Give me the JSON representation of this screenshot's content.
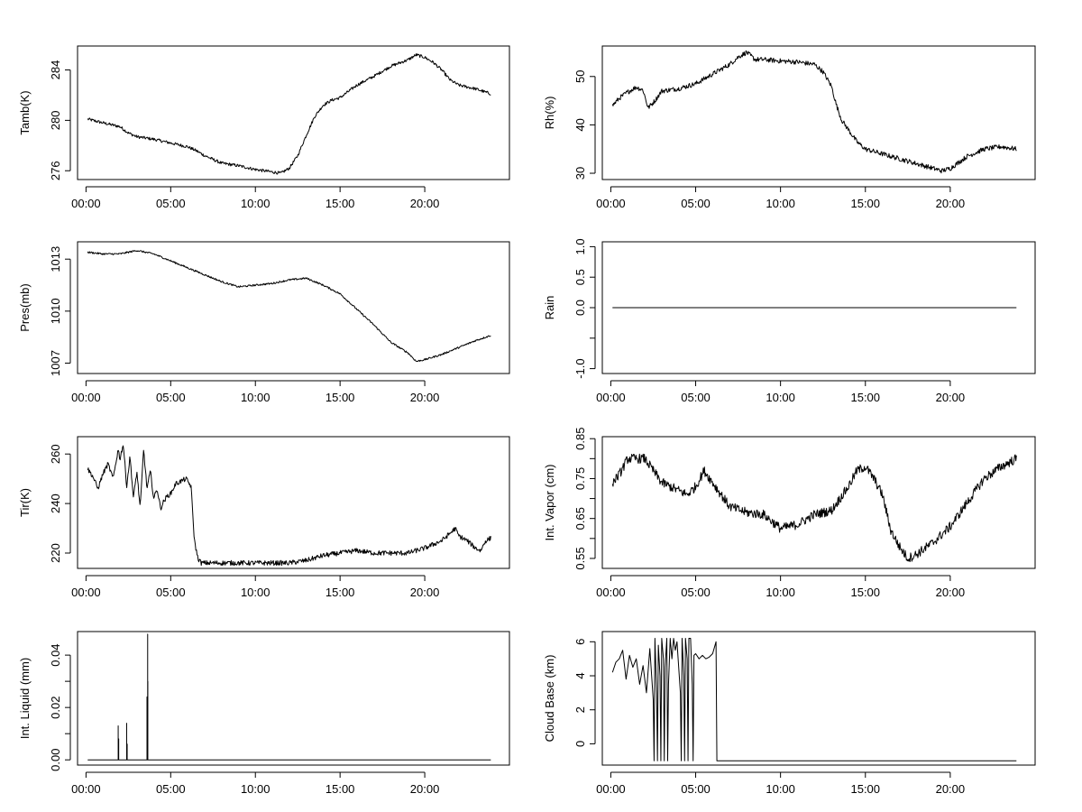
{
  "chart_data": [
    {
      "type": "line",
      "ylabel": "Tamb(K)",
      "x_ticks": [
        "00:00",
        "05:00",
        "10:00",
        "15:00",
        "20:00"
      ],
      "xlim": [
        -0.5,
        25.0
      ],
      "ylim": [
        275.3,
        285.9
      ],
      "y_ticks": [
        276,
        280,
        284
      ],
      "noise": 0.12,
      "series": [
        {
          "x": [
            0.1,
            1.0,
            2.0,
            2.5,
            3.0,
            4.0,
            5.0,
            6.0,
            6.5,
            7.0,
            7.5,
            8.0,
            9.0,
            10.0,
            11.0,
            11.5,
            12.0,
            12.5,
            13.0,
            13.5,
            14.0,
            14.5,
            15.0,
            16.0,
            17.0,
            18.0,
            19.0,
            19.5,
            20.0,
            20.5,
            21.0,
            21.5,
            22.0,
            23.0,
            23.9
          ],
          "y": [
            280.1,
            279.8,
            279.5,
            279.0,
            278.7,
            278.5,
            278.2,
            277.9,
            277.6,
            277.2,
            276.9,
            276.6,
            276.4,
            276.1,
            275.9,
            275.8,
            276.2,
            277.2,
            278.8,
            280.3,
            281.2,
            281.6,
            281.8,
            282.8,
            283.5,
            284.3,
            284.8,
            285.2,
            285.0,
            284.6,
            284.0,
            283.2,
            282.8,
            282.5,
            282.1
          ]
        }
      ]
    },
    {
      "type": "line",
      "ylabel": "Rh(%)",
      "x_ticks": [
        "00:00",
        "05:00",
        "10:00",
        "15:00",
        "20:00"
      ],
      "xlim": [
        -0.5,
        25.0
      ],
      "ylim": [
        28.7,
        56.3
      ],
      "y_ticks": [
        30,
        40,
        50
      ],
      "noise": 0.5,
      "series": [
        {
          "x": [
            0.1,
            0.5,
            1.0,
            1.5,
            1.9,
            2.2,
            2.6,
            3.0,
            4.0,
            5.0,
            6.0,
            7.0,
            7.5,
            8.0,
            8.5,
            9.0,
            10.0,
            11.0,
            12.0,
            12.5,
            13.0,
            13.3,
            13.6,
            14.0,
            14.5,
            15.0,
            16.0,
            17.0,
            18.0,
            19.0,
            19.5,
            20.0,
            21.0,
            22.0,
            23.0,
            23.9
          ],
          "y": [
            44.0,
            45.5,
            46.8,
            47.8,
            47.2,
            43.5,
            45.0,
            47.0,
            47.5,
            48.5,
            50.5,
            52.5,
            54.0,
            55.0,
            53.5,
            53.5,
            53.2,
            53.0,
            52.5,
            51.0,
            48.0,
            44.0,
            41.0,
            39.0,
            36.5,
            35.0,
            34.0,
            33.0,
            32.0,
            31.0,
            30.5,
            31.0,
            33.5,
            35.0,
            35.5,
            35.0
          ]
        }
      ]
    },
    {
      "type": "line",
      "ylabel": "Pres(mb)",
      "x_ticks": [
        "00:00",
        "05:00",
        "10:00",
        "15:00",
        "20:00"
      ],
      "xlim": [
        -0.5,
        25.0
      ],
      "ylim": [
        1006.4,
        1014.0
      ],
      "y_ticks": [
        1007,
        1010,
        1013
      ],
      "noise": 0.05,
      "series": [
        {
          "x": [
            0.1,
            1.0,
            2.0,
            3.0,
            4.0,
            5.0,
            6.0,
            7.0,
            8.0,
            9.0,
            10.0,
            11.0,
            12.0,
            13.0,
            14.0,
            15.0,
            16.0,
            17.0,
            18.0,
            19.0,
            19.5,
            20.0,
            21.0,
            22.0,
            23.0,
            23.9
          ],
          "y": [
            1013.4,
            1013.3,
            1013.3,
            1013.5,
            1013.3,
            1012.9,
            1012.5,
            1012.1,
            1011.7,
            1011.4,
            1011.5,
            1011.6,
            1011.8,
            1011.9,
            1011.5,
            1011.0,
            1010.1,
            1009.2,
            1008.2,
            1007.6,
            1007.1,
            1007.2,
            1007.5,
            1007.9,
            1008.3,
            1008.6
          ]
        }
      ]
    },
    {
      "type": "line",
      "ylabel": "Rain",
      "x_ticks": [
        "00:00",
        "05:00",
        "10:00",
        "15:00",
        "20:00"
      ],
      "xlim": [
        -0.5,
        25.0
      ],
      "ylim": [
        -1.08,
        1.08
      ],
      "y_ticks": [
        -1.0,
        -0.5,
        0.0,
        0.5,
        1.0
      ],
      "y_tick_labels": [
        "-1.0",
        "",
        "0.0",
        "0.5",
        "1.0"
      ],
      "noise": 0,
      "series": [
        {
          "x": [
            0.1,
            23.9
          ],
          "y": [
            0.0,
            0.0
          ]
        }
      ]
    },
    {
      "type": "line",
      "ylabel": "Tir(K)",
      "x_ticks": [
        "00:00",
        "05:00",
        "10:00",
        "15:00",
        "20:00"
      ],
      "xlim": [
        -0.5,
        25.0
      ],
      "ylim": [
        213.8,
        267.0
      ],
      "y_ticks": [
        220,
        240,
        260
      ],
      "noise": 1.0,
      "series": [
        {
          "x": [
            0.1,
            0.4,
            0.7,
            1.0,
            1.3,
            1.6,
            1.9,
            2.0,
            2.2,
            2.4,
            2.6,
            2.8,
            3.0,
            3.2,
            3.4,
            3.6,
            3.8,
            4.0,
            4.2,
            4.4,
            4.6,
            4.8,
            5.0,
            5.3,
            5.6,
            5.9,
            6.2,
            6.4,
            6.6,
            6.8,
            7.0,
            8.0,
            9.0,
            10.0,
            11.0,
            12.0,
            13.0,
            14.0,
            15.0,
            16.0,
            17.0,
            18.0,
            19.0,
            19.5,
            20.0,
            21.0,
            21.5,
            21.8,
            22.0,
            22.5,
            23.0,
            23.3,
            23.6,
            23.9
          ],
          "y": [
            254,
            251,
            246,
            252,
            256,
            250,
            262,
            258,
            264,
            247,
            259,
            242,
            253,
            238,
            262,
            246,
            253,
            242,
            246,
            238,
            241,
            243,
            244,
            248,
            249,
            250,
            247,
            225,
            218,
            216,
            216,
            216,
            216,
            216,
            216,
            216,
            217,
            219,
            220,
            221,
            220,
            220,
            220,
            221,
            222,
            225,
            228,
            230,
            227,
            225,
            222,
            221,
            225,
            226
          ]
        }
      ]
    },
    {
      "type": "line",
      "ylabel": "Int. Vapor (cm)",
      "x_ticks": [
        "00:00",
        "05:00",
        "10:00",
        "15:00",
        "20:00"
      ],
      "xlim": [
        -0.5,
        25.0
      ],
      "ylim": [
        0.525,
        0.855
      ],
      "y_ticks": [
        0.55,
        0.65,
        0.75,
        0.85
      ],
      "y_minor_ticks": [
        0.6,
        0.7,
        0.8
      ],
      "noise": 0.012,
      "series": [
        {
          "x": [
            0.1,
            0.5,
            1.0,
            1.5,
            2.0,
            2.5,
            3.0,
            4.0,
            4.5,
            5.0,
            5.5,
            6.0,
            7.0,
            8.0,
            9.0,
            10.0,
            11.0,
            12.0,
            13.0,
            14.0,
            14.5,
            15.0,
            15.5,
            16.0,
            16.5,
            17.0,
            17.5,
            18.0,
            19.0,
            20.0,
            21.0,
            22.0,
            23.0,
            23.9
          ],
          "y": [
            0.74,
            0.76,
            0.8,
            0.8,
            0.8,
            0.77,
            0.74,
            0.72,
            0.71,
            0.73,
            0.77,
            0.74,
            0.68,
            0.665,
            0.66,
            0.625,
            0.635,
            0.66,
            0.67,
            0.73,
            0.77,
            0.78,
            0.75,
            0.71,
            0.62,
            0.58,
            0.55,
            0.56,
            0.59,
            0.63,
            0.69,
            0.75,
            0.78,
            0.8
          ]
        }
      ]
    },
    {
      "type": "line",
      "ylabel": "Int. Liquid (mm)",
      "x_ticks": [
        "00:00",
        "05:00",
        "10:00",
        "15:00",
        "20:00"
      ],
      "xlim": [
        -0.5,
        25.0
      ],
      "ylim": [
        -0.002,
        0.049
      ],
      "y_ticks": [
        0.0,
        0.02,
        0.04
      ],
      "y_tick_labels": [
        "0.00",
        "0.02",
        "0.04"
      ],
      "y_minor_ticks": [
        0.01,
        0.03
      ],
      "noise": 0,
      "series": [
        {
          "x": [
            0.1,
            1.9,
            1.9,
            1.9,
            1.93,
            1.93,
            1.93,
            2.4,
            2.4,
            2.4,
            2.43,
            2.43,
            2.43,
            3.6,
            3.6,
            3.6,
            3.64,
            3.64,
            3.64,
            3.65,
            3.65,
            3.65,
            23.9
          ],
          "y": [
            0.0,
            0.0,
            0.013,
            0.0,
            0.0,
            0.008,
            0.0,
            0.0,
            0.014,
            0.0,
            0.0,
            0.006,
            0.0,
            0.0,
            0.024,
            0.0,
            0.0,
            0.048,
            0.0,
            0.0,
            0.03,
            0.0,
            0.0
          ]
        }
      ]
    },
    {
      "type": "line",
      "ylabel": "Cloud Base (km)",
      "x_ticks": [
        "00:00",
        "05:00",
        "10:00",
        "15:00",
        "20:00"
      ],
      "xlim": [
        -0.5,
        25.0
      ],
      "ylim": [
        -1.25,
        6.6
      ],
      "y_ticks": [
        0,
        2,
        4,
        6
      ],
      "noise": 0,
      "series": [
        {
          "x": [
            0.1,
            0.3,
            0.5,
            0.7,
            0.9,
            1.1,
            1.3,
            1.5,
            1.7,
            1.9,
            2.1,
            2.3,
            2.5,
            2.55,
            2.6,
            2.7,
            2.75,
            2.8,
            2.9,
            2.95,
            3.0,
            3.1,
            3.15,
            3.2,
            3.3,
            3.35,
            3.4,
            3.5,
            3.6,
            3.7,
            3.8,
            3.9,
            4.0,
            4.1,
            4.15,
            4.2,
            4.3,
            4.35,
            4.4,
            4.5,
            4.55,
            4.6,
            4.7,
            4.8,
            4.85,
            4.9,
            5.0,
            5.2,
            5.4,
            5.6,
            5.8,
            6.0,
            6.2,
            6.25,
            6.3,
            23.9
          ],
          "y": [
            4.2,
            4.8,
            5.0,
            5.5,
            3.8,
            5.2,
            4.5,
            5.0,
            3.5,
            4.6,
            3.0,
            5.6,
            2.6,
            -1.0,
            6.2,
            3.0,
            -1.0,
            5.8,
            4.0,
            -1.0,
            6.2,
            5.0,
            -1.0,
            4.5,
            6.2,
            -1.0,
            3.5,
            6.2,
            5.0,
            6.2,
            5.5,
            6.0,
            4.5,
            3.0,
            -1.0,
            6.2,
            4.0,
            -1.0,
            6.2,
            5.0,
            -1.0,
            6.2,
            6.2,
            3.5,
            -1.0,
            5.2,
            5.3,
            5.0,
            5.2,
            5.0,
            5.1,
            5.3,
            6.0,
            -1.0,
            -1.0,
            -1.0
          ]
        }
      ]
    }
  ]
}
